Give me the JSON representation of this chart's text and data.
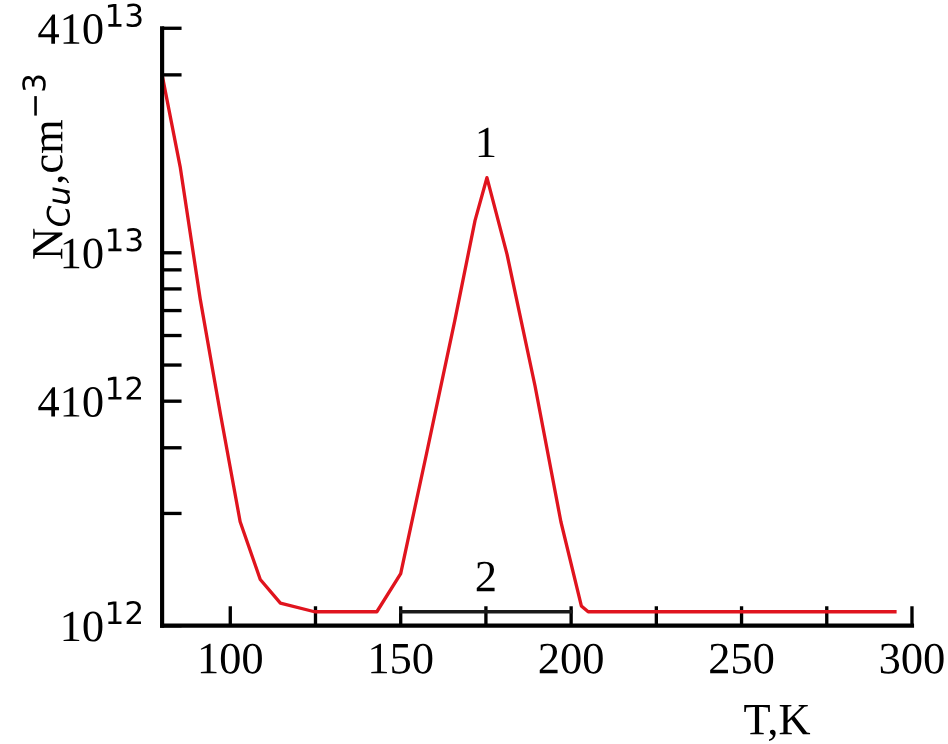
{
  "chart_data": {
    "type": "line",
    "xlabel": "T,K",
    "ylabel": "N$_{Cu}$,cm$^{−3}$",
    "log": "y",
    "xlim": [
      80,
      300
    ],
    "ylim": [
      1000000000000.0,
      40000000000000.0
    ],
    "xticks": [
      100,
      {
        "value": 125,
        "label": null
      },
      150,
      {
        "value": 175,
        "label": null
      },
      200,
      {
        "value": 225,
        "label": null
      },
      250,
      {
        "value": 275,
        "label": null
      },
      300
    ],
    "yticks": [
      {
        "value": 1000000000000.0,
        "label": "10$^{12}$"
      },
      {
        "value": 2000000000000.0,
        "label": null
      },
      {
        "value": 3000000000000.0,
        "label": null
      },
      {
        "value": 4000000000000.0,
        "label": "410$^{12}$"
      },
      {
        "value": 5000000000000.0,
        "label": null
      },
      {
        "value": 6000000000000.0,
        "label": null
      },
      {
        "value": 7000000000000.0,
        "label": null
      },
      {
        "value": 8000000000000.0,
        "label": null
      },
      {
        "value": 9000000000000.0,
        "label": null
      },
      {
        "value": 10000000000000.0,
        "label": "10$^{13}$"
      },
      {
        "value": 30000000000000.0,
        "label": null
      },
      {
        "value": 40000000000000.0,
        "label": "410$^{13}$"
      }
    ],
    "grid": false,
    "legend": false,
    "marker": "none",
    "line_style": "solid",
    "series": [
      {
        "color": "#e0141e",
        "x": [
          80,
          85.3,
          91.2,
          97.1,
          102.9,
          108.8,
          114.7,
          124.7,
          143,
          150,
          157.6,
          165.9,
          171.8,
          175.3,
          181.2,
          189.4,
          197,
          203,
          205,
          295
        ],
        "values": [
          30000000000000.0,
          17000000000000.0,
          7500000000000.0,
          3700000000000.0,
          1900000000000.0,
          1330000000000.0,
          1150000000000.0,
          1090000000000.0,
          1090000000000.0,
          1380000000000.0,
          2900000000000.0,
          6600000000000.0,
          12200000000000.0,
          15900000000000.0,
          9900000000000.0,
          4400000000000.0,
          1900000000000.0,
          1130000000000.0,
          1090000000000.0,
          1090000000000.0
        ]
      },
      {
        "color": "#1a1a1a",
        "x": [
          150,
          200
        ],
        "values": [
          1090000000000.0,
          1090000000000.0
        ]
      }
    ],
    "annotations": [
      {
        "text": "1",
        "x": 175,
        "y": 15900000000000.0
      },
      {
        "text": "2",
        "x": 175,
        "y": 1090000000000.0
      }
    ]
  }
}
